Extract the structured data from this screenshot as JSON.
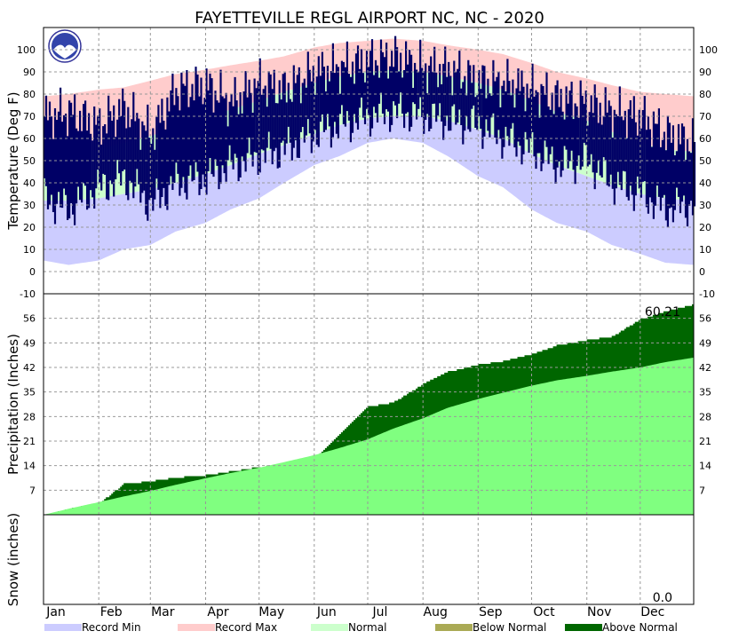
{
  "title": "FAYETTEVILLE REGL AIRPORT NC, NC - 2020",
  "months": [
    "Jan",
    "Feb",
    "Mar",
    "Apr",
    "May",
    "Jun",
    "Jul",
    "Aug",
    "Sep",
    "Oct",
    "Nov",
    "Dec"
  ],
  "legend": [
    {
      "label": "Record Min",
      "color": "#ccccff"
    },
    {
      "label": "Record Max",
      "color": "#ffcccc"
    },
    {
      "label": "Normal",
      "color": "#ccffcc"
    },
    {
      "label": "Below Normal",
      "color": "#aaaa55"
    },
    {
      "label": "Above Normal",
      "color": "#006600"
    }
  ],
  "colors": {
    "record_min": "#ccccff",
    "record_max": "#ffcccc",
    "normal": "#ccffcc",
    "observed": "#000066",
    "normal_precip": "#80ff80",
    "above_normal": "#006600",
    "grid": "#999999"
  },
  "chart_data": [
    {
      "type": "area",
      "name": "temperature",
      "ylabel": "Temperature (Deg F)",
      "ylim": [
        -10,
        110
      ],
      "yticks": [
        0,
        10,
        20,
        30,
        40,
        50,
        60,
        70,
        80,
        90,
        100
      ],
      "ytick_bottom_label": -10,
      "x": [
        "Jan 1",
        "Jan 15",
        "Feb 1",
        "Feb 15",
        "Mar 1",
        "Mar 15",
        "Apr 1",
        "Apr 15",
        "May 1",
        "May 15",
        "Jun 1",
        "Jun 15",
        "Jul 1",
        "Jul 15",
        "Aug 1",
        "Aug 15",
        "Sep 1",
        "Sep 15",
        "Oct 1",
        "Oct 15",
        "Nov 1",
        "Nov 15",
        "Dec 1",
        "Dec 15",
        "Dec 31"
      ],
      "series": [
        {
          "name": "Record Max",
          "values": [
            79,
            80,
            82,
            83,
            86,
            89,
            91,
            93,
            95,
            97,
            101,
            103,
            104,
            105,
            104,
            102,
            100,
            98,
            94,
            90,
            87,
            84,
            81,
            80,
            79
          ]
        },
        {
          "name": "Normal High",
          "values": [
            53,
            53,
            55,
            58,
            61,
            65,
            69,
            73,
            77,
            81,
            85,
            88,
            90,
            91,
            90,
            88,
            85,
            82,
            77,
            72,
            68,
            63,
            58,
            55,
            54
          ]
        },
        {
          "name": "Normal Low",
          "values": [
            32,
            32,
            33,
            35,
            37,
            40,
            44,
            48,
            53,
            57,
            62,
            66,
            69,
            70,
            70,
            68,
            64,
            60,
            53,
            48,
            43,
            39,
            35,
            33,
            32
          ]
        },
        {
          "name": "Record Min",
          "values": [
            5,
            3,
            5,
            10,
            12,
            18,
            22,
            28,
            33,
            40,
            48,
            52,
            58,
            60,
            58,
            52,
            43,
            38,
            28,
            22,
            18,
            12,
            8,
            4,
            3
          ]
        },
        {
          "name": "Observed High",
          "values": [
            70,
            72,
            66,
            74,
            62,
            82,
            84,
            76,
            85,
            82,
            90,
            92,
            95,
            97,
            92,
            91,
            86,
            85,
            82,
            78,
            76,
            72,
            70,
            62,
            58
          ]
        },
        {
          "name": "Observed Low",
          "values": [
            33,
            28,
            38,
            42,
            30,
            40,
            42,
            48,
            52,
            55,
            62,
            66,
            70,
            72,
            70,
            68,
            66,
            60,
            55,
            48,
            50,
            40,
            35,
            28,
            30
          ]
        }
      ]
    },
    {
      "type": "area",
      "name": "precipitation",
      "ylabel": "Precipitation (Inches)",
      "ylim": [
        0,
        63
      ],
      "yticks": [
        7,
        14,
        21,
        28,
        35,
        42,
        49,
        56
      ],
      "annotation": "60.21",
      "x": [
        "Jan 1",
        "Jan 15",
        "Feb 1",
        "Feb 15",
        "Mar 1",
        "Mar 15",
        "Apr 1",
        "Apr 15",
        "May 1",
        "May 15",
        "Jun 1",
        "Jun 15",
        "Jul 1",
        "Jul 15",
        "Aug 1",
        "Aug 15",
        "Sep 1",
        "Sep 15",
        "Oct 1",
        "Oct 15",
        "Nov 1",
        "Nov 15",
        "Dec 1",
        "Dec 15",
        "Dec 31"
      ],
      "series": [
        {
          "name": "Observed",
          "values": [
            0,
            1.8,
            3.5,
            9.0,
            9.8,
            10.8,
            11.5,
            12.6,
            13.8,
            14.6,
            16.5,
            23.0,
            31.0,
            32.2,
            37.5,
            41.0,
            43.0,
            44.0,
            46.0,
            48.5,
            50.0,
            51.0,
            56.0,
            58.2,
            60.21
          ]
        },
        {
          "name": "Normal",
          "values": [
            0,
            1.7,
            3.6,
            5.2,
            6.8,
            8.5,
            10.4,
            11.9,
            13.4,
            15.0,
            17.0,
            19.0,
            21.5,
            24.5,
            27.5,
            30.5,
            33.0,
            34.8,
            36.8,
            38.3,
            39.6,
            40.8,
            42.0,
            43.5,
            44.8
          ]
        }
      ]
    },
    {
      "type": "area",
      "name": "snow",
      "ylabel": "Snow (inches)",
      "annotation": "0.0",
      "series": [
        {
          "name": "Snow",
          "values": [
            0
          ]
        }
      ]
    }
  ]
}
